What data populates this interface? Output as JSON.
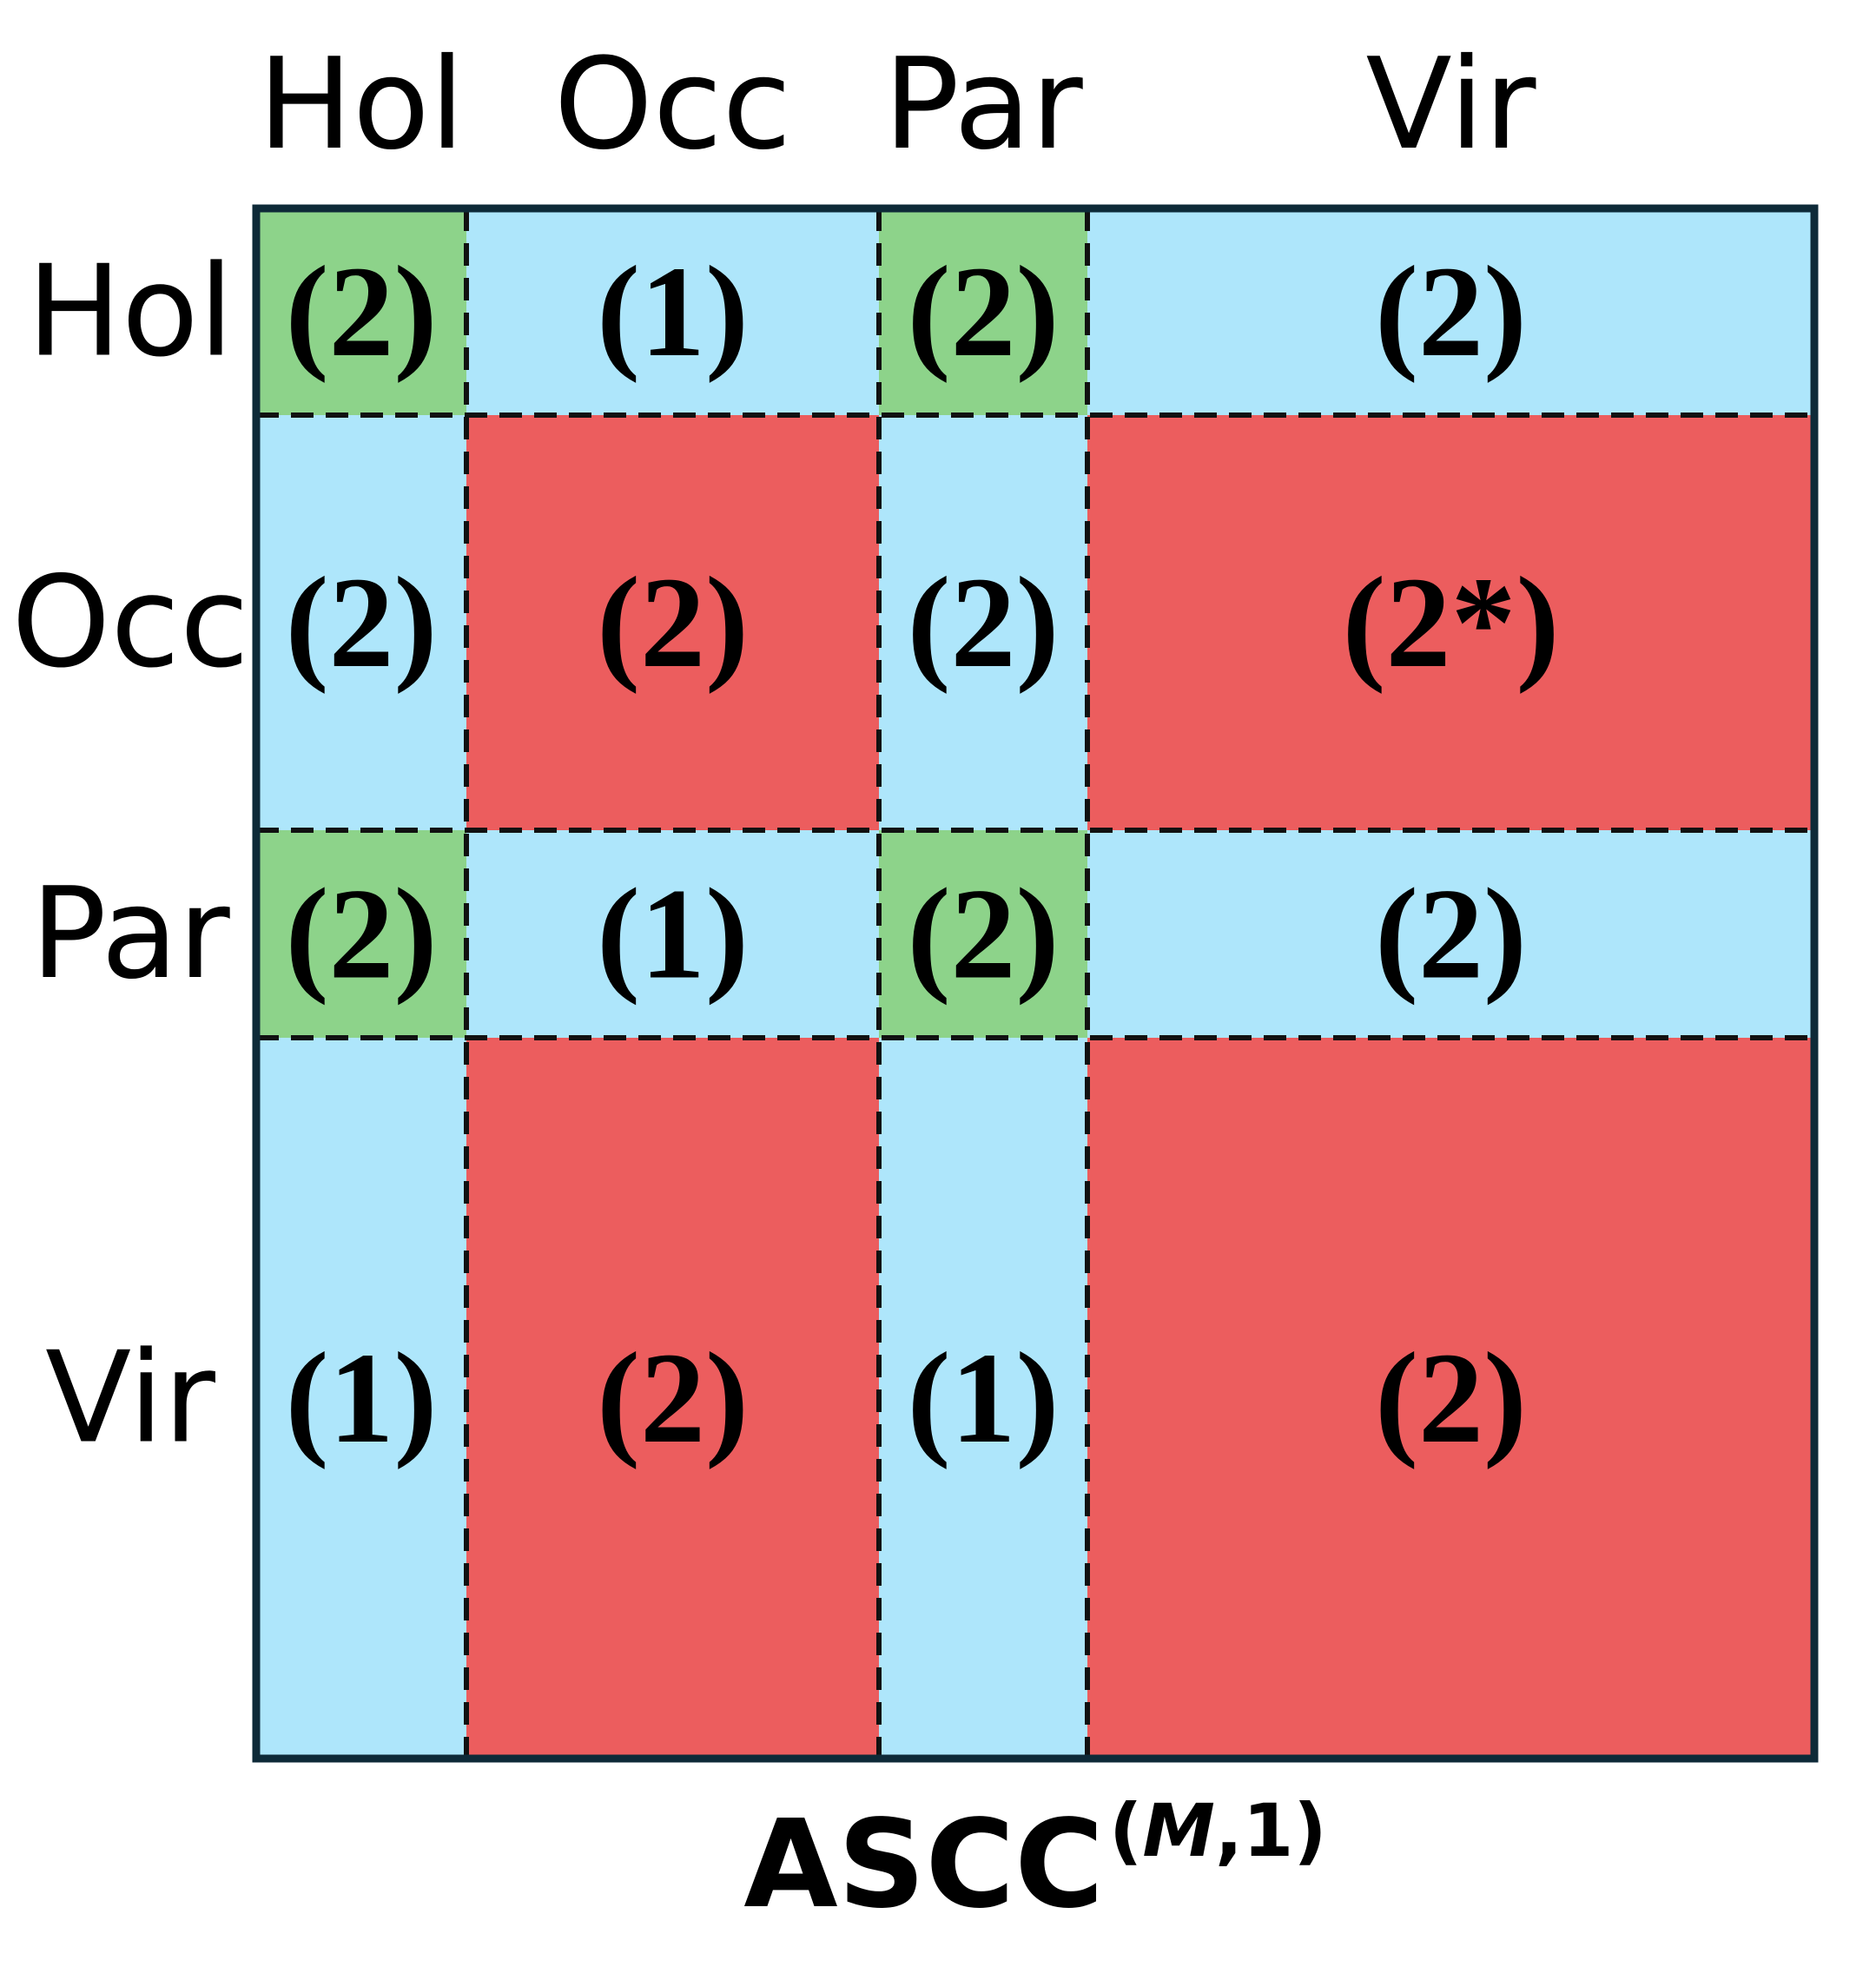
{
  "column_headers": [
    "Hol",
    "Occ",
    "Par",
    "Vir"
  ],
  "row_headers": [
    "Hol",
    "Occ",
    "Par",
    "Vir"
  ],
  "colors": {
    "blue": "#aee6fb",
    "green": "#8dd38a",
    "red": "#ec5d5e",
    "border": "#0e2a38",
    "divider": "#111111"
  },
  "cells": [
    [
      {
        "label": "(2)",
        "color": "green"
      },
      {
        "label": "(1)",
        "color": "blue"
      },
      {
        "label": "(2)",
        "color": "green"
      },
      {
        "label": "(2)",
        "color": "blue"
      }
    ],
    [
      {
        "label": "(2)",
        "color": "blue"
      },
      {
        "label": "(2)",
        "color": "red"
      },
      {
        "label": "(2)",
        "color": "blue"
      },
      {
        "label": "(2*)",
        "color": "red"
      }
    ],
    [
      {
        "label": "(2)",
        "color": "green"
      },
      {
        "label": "(1)",
        "color": "blue"
      },
      {
        "label": "(2)",
        "color": "green"
      },
      {
        "label": "(2)",
        "color": "blue"
      }
    ],
    [
      {
        "label": "(1)",
        "color": "blue"
      },
      {
        "label": "(2)",
        "color": "red"
      },
      {
        "label": "(1)",
        "color": "blue"
      },
      {
        "label": "(2)",
        "color": "red"
      }
    ]
  ],
  "caption": {
    "main": "ASCC",
    "sup_open": "(",
    "sup_italic": "M",
    "sup_rest": ",1)"
  }
}
